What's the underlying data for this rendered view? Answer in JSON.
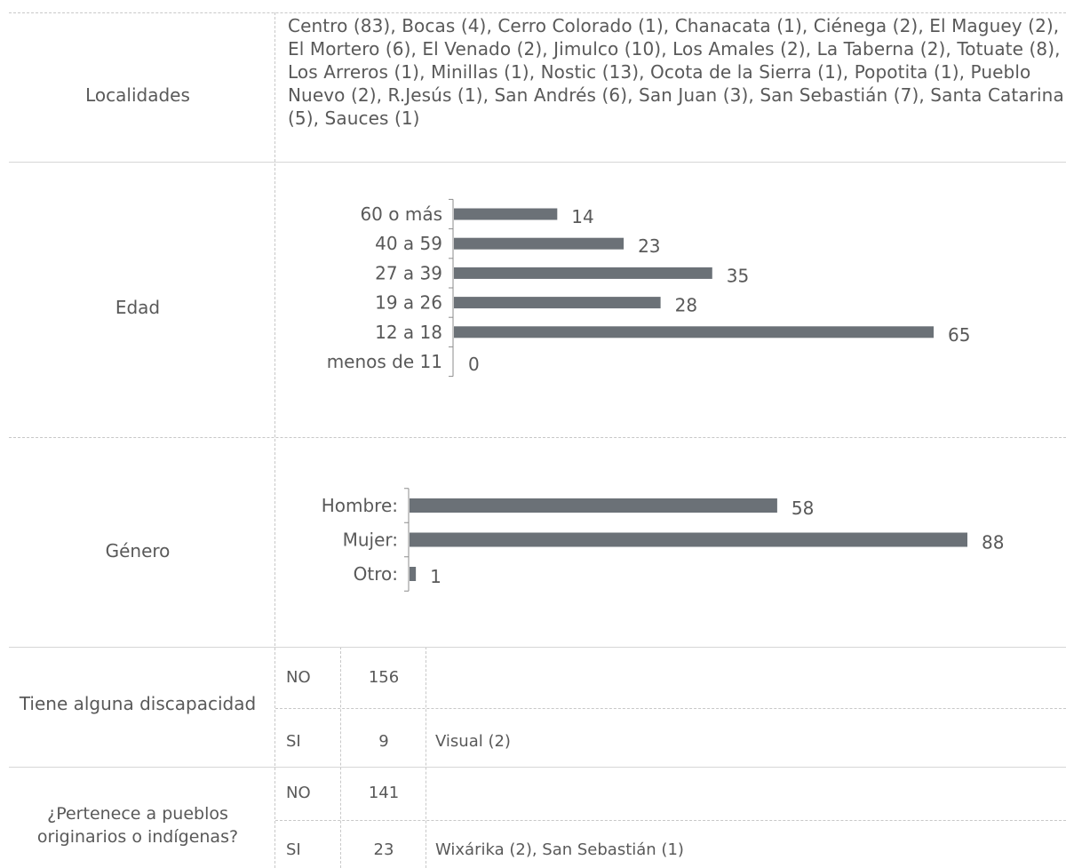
{
  "localidades": {
    "label": "Localidades",
    "text": "Centro (83), Bocas (4), Cerro Colorado (1), Chanacata (1), Ciénega (2), El Maguey (2), El Mortero (6), El Venado (2), Jimulco (10), Los Amales (2), La Taberna (2), Totuate (8), Los Arreros (1), Minillas (1), Nostic (13), Ocota de la Sierra (1), Popotita (1), Pueblo Nuevo (2), R.Jesús (1), San Andrés (6), San Juan (3), San Sebastián (7), Santa Catarina (5), Sauces (1)"
  },
  "edad": {
    "label": "Edad"
  },
  "genero": {
    "label": "Género"
  },
  "discapacidad": {
    "label": "Tiene alguna discapacidad",
    "rows": [
      {
        "answer": "NO",
        "count": "156",
        "detail": ""
      },
      {
        "answer": "SI",
        "count": "9",
        "detail": "Visual (2)"
      }
    ]
  },
  "pueblos": {
    "label": "¿Pertenece a pueblos originarios o indígenas?",
    "rows": [
      {
        "answer": "NO",
        "count": "141",
        "detail": ""
      },
      {
        "answer": "SI",
        "count": "23",
        "detail": "Wixárika (2), San Sebastián (1)"
      }
    ]
  },
  "chart_data": [
    {
      "type": "bar",
      "orientation": "horizontal",
      "categories": [
        "60 o más",
        "40 a 59",
        "27 a 39",
        "19 a 26",
        "12 a 18",
        "menos de 11"
      ],
      "values": [
        14,
        23,
        35,
        28,
        65,
        0
      ],
      "color": "#6b7177"
    },
    {
      "type": "bar",
      "orientation": "horizontal",
      "categories": [
        "Hombre:",
        "Mujer:",
        "Otro:"
      ],
      "values": [
        58,
        88,
        1
      ],
      "color": "#6b7177"
    }
  ]
}
